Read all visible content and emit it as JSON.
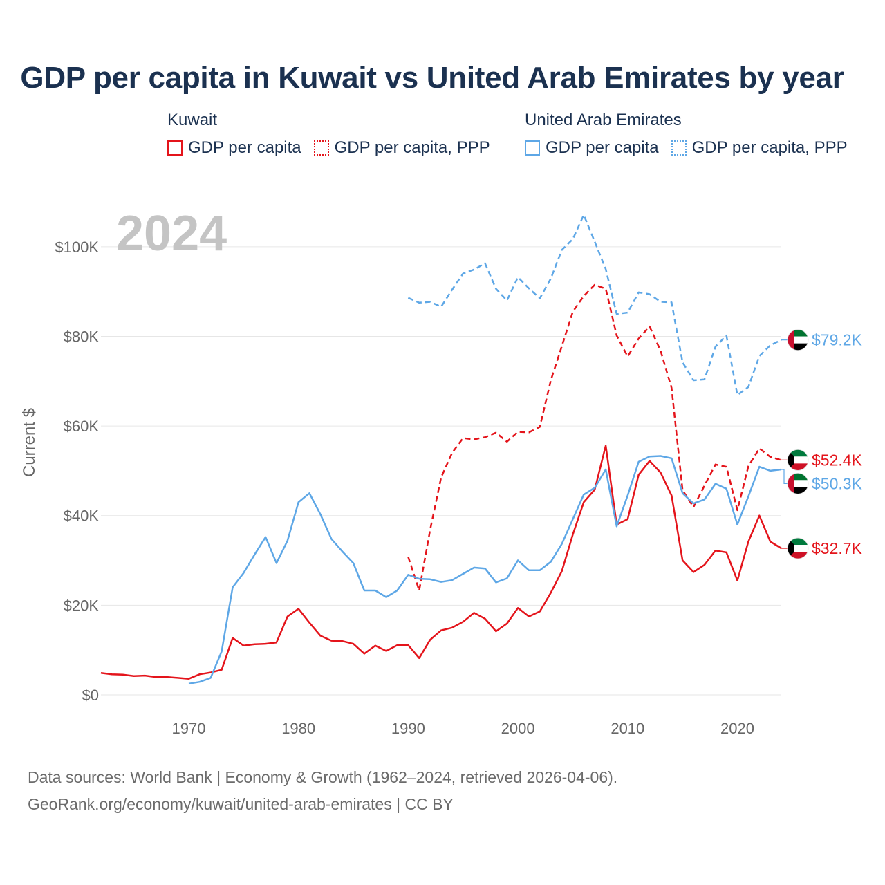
{
  "title": "GDP per capita in Kuwait vs United Arab Emirates by year",
  "legend": {
    "kuwait": {
      "country": "Kuwait",
      "items": [
        "GDP per capita",
        "GDP per capita, PPP"
      ]
    },
    "uae": {
      "country": "United Arab Emirates",
      "items": [
        "GDP per capita",
        "GDP per capita, PPP"
      ]
    }
  },
  "year_watermark": "2024",
  "footer": {
    "line1": "Data sources: World Bank | Economy & Growth (1962–2024, retrieved 2026-04-06).",
    "line2": "GeoRank.org/economy/kuwait/united-arab-emirates | CC BY"
  },
  "colors": {
    "kuwait": "#e4141b",
    "uae": "#5ea7e6",
    "title": "#1b3150",
    "axis_text": "#666666",
    "grid": "#e6e6e6"
  },
  "chart_data": {
    "type": "line",
    "title": "GDP per capita in Kuwait vs United Arab Emirates by year",
    "xlabel": "",
    "ylabel": "Current $",
    "xlim": [
      1962,
      2024
    ],
    "ylim": [
      0,
      110000
    ],
    "x_ticks": [
      1970,
      1980,
      1990,
      2000,
      2010,
      2020
    ],
    "y_ticks": [
      0,
      20000,
      40000,
      60000,
      80000,
      100000
    ],
    "y_tick_labels": [
      "$0",
      "$20K",
      "$40K",
      "$60K",
      "$80K",
      "$100K"
    ],
    "grid": true,
    "series": [
      {
        "name": "Kuwait GDP per capita",
        "country": "Kuwait",
        "style": "solid",
        "color": "#e4141b",
        "end_label": "$32.7K",
        "end_value": 32700,
        "x": [
          1962,
          1963,
          1964,
          1965,
          1966,
          1967,
          1968,
          1969,
          1970,
          1971,
          1972,
          1973,
          1974,
          1975,
          1976,
          1977,
          1978,
          1979,
          1980,
          1981,
          1982,
          1983,
          1984,
          1985,
          1986,
          1987,
          1988,
          1989,
          1990,
          1991,
          1992,
          1993,
          1994,
          1995,
          1996,
          1997,
          1998,
          1999,
          2000,
          2001,
          2002,
          2003,
          2004,
          2005,
          2006,
          2007,
          2008,
          2009,
          2010,
          2011,
          2012,
          2013,
          2014,
          2015,
          2016,
          2017,
          2018,
          2019,
          2020,
          2021,
          2022,
          2023,
          2024
        ],
        "values": [
          4900,
          4600,
          4500,
          4200,
          4300,
          4000,
          4000,
          3800,
          3600,
          4600,
          5000,
          5600,
          12700,
          11000,
          11300,
          11400,
          11700,
          17500,
          19200,
          16100,
          13200,
          12100,
          12000,
          11400,
          9200,
          11000,
          9800,
          11100,
          11100,
          8200,
          12300,
          14400,
          15000,
          16300,
          18300,
          17000,
          14200,
          15900,
          19400,
          17500,
          18600,
          22800,
          27600,
          35800,
          43000,
          45800,
          55600,
          38000,
          39200,
          49100,
          52200,
          49600,
          44500,
          30000,
          27400,
          29000,
          32200,
          31800,
          25500,
          34200,
          40000,
          34200,
          32700
        ]
      },
      {
        "name": "Kuwait GDP per capita, PPP",
        "country": "Kuwait",
        "style": "dashed",
        "color": "#e4141b",
        "end_label": "$52.4K",
        "end_value": 52400,
        "x": [
          1990,
          1991,
          1992,
          1993,
          1994,
          1995,
          1996,
          1997,
          1998,
          1999,
          2000,
          2001,
          2002,
          2003,
          2004,
          2005,
          2006,
          2007,
          2008,
          2009,
          2010,
          2011,
          2012,
          2013,
          2014,
          2015,
          2016,
          2017,
          2018,
          2019,
          2020,
          2021,
          2022,
          2023,
          2024
        ],
        "values": [
          30800,
          23300,
          36800,
          48500,
          54000,
          57300,
          57000,
          57500,
          58500,
          56500,
          58700,
          58600,
          59800,
          70200,
          77800,
          85500,
          89000,
          91500,
          90600,
          80200,
          75500,
          79500,
          82200,
          76800,
          68500,
          45700,
          41900,
          46700,
          51400,
          50900,
          41200,
          51000,
          55000,
          53100,
          52400
        ]
      },
      {
        "name": "United Arab Emirates GDP per capita",
        "country": "United Arab Emirates",
        "style": "solid",
        "color": "#5ea7e6",
        "end_label": "$50.3K",
        "end_value": 50300,
        "x": [
          1970,
          1971,
          1972,
          1973,
          1974,
          1975,
          1976,
          1977,
          1978,
          1979,
          1980,
          1981,
          1982,
          1983,
          1984,
          1985,
          1986,
          1987,
          1988,
          1989,
          1990,
          1991,
          1992,
          1993,
          1994,
          1995,
          1996,
          1997,
          1998,
          1999,
          2000,
          2001,
          2002,
          2003,
          2004,
          2005,
          2006,
          2007,
          2008,
          2009,
          2010,
          2011,
          2012,
          2013,
          2014,
          2015,
          2016,
          2017,
          2018,
          2019,
          2020,
          2021,
          2022,
          2023,
          2024
        ],
        "values": [
          2500,
          2900,
          3800,
          9700,
          24000,
          27200,
          31300,
          35200,
          29400,
          34400,
          43000,
          45000,
          40300,
          34800,
          32000,
          29400,
          23300,
          23300,
          21800,
          23300,
          26800,
          25900,
          25800,
          25200,
          25600,
          27000,
          28400,
          28200,
          25100,
          26000,
          30000,
          27800,
          27800,
          29700,
          33700,
          39200,
          44700,
          46200,
          50300,
          37600,
          44500,
          52000,
          53200,
          53300,
          52800,
          45000,
          42700,
          43600,
          47100,
          46000,
          38000,
          44300,
          50900,
          50000,
          50300
        ]
      },
      {
        "name": "United Arab Emirates GDP per capita, PPP",
        "country": "United Arab Emirates",
        "style": "dashed",
        "color": "#5ea7e6",
        "end_label": "$79.2K",
        "end_value": 79200,
        "x": [
          1990,
          1991,
          1992,
          1993,
          1994,
          1995,
          1996,
          1997,
          1998,
          1999,
          2000,
          2001,
          2002,
          2003,
          2004,
          2005,
          2006,
          2007,
          2008,
          2009,
          2010,
          2011,
          2012,
          2013,
          2014,
          2015,
          2016,
          2017,
          2018,
          2019,
          2020,
          2021,
          2022,
          2023,
          2024
        ],
        "values": [
          88600,
          87500,
          87700,
          86600,
          90400,
          94000,
          94900,
          96300,
          90600,
          88000,
          93200,
          90700,
          88500,
          92900,
          99300,
          101700,
          107100,
          101100,
          95000,
          85000,
          85300,
          89800,
          89400,
          87700,
          87600,
          74200,
          70200,
          70400,
          77700,
          80200,
          66900,
          68700,
          75600,
          78000,
          79200
        ]
      }
    ]
  }
}
